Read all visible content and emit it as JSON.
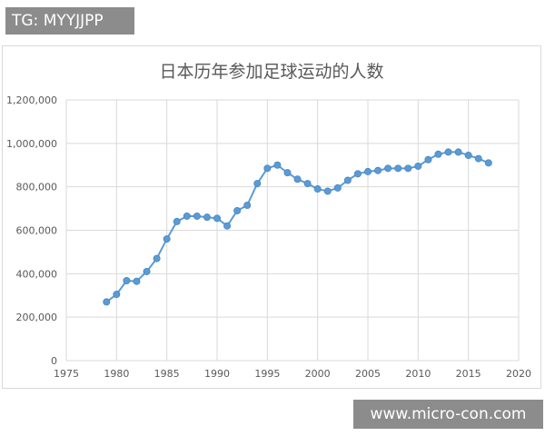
{
  "overlay": {
    "tg_text": "TG: MYYJJPP",
    "watermark_text": "www.micro-con.com"
  },
  "colors": {
    "line": "#5b9bd5",
    "marker": "#5b9bd5",
    "grid": "#d9d9d9",
    "axis_text": "#595959",
    "title": "#595959",
    "overlay_bg": "#8c8c8c"
  },
  "chart_data": {
    "type": "line",
    "title": "日本历年参加足球运动的人数",
    "xlabel": "",
    "ylabel": "",
    "xlim": [
      1975,
      2020
    ],
    "ylim": [
      0,
      1200000
    ],
    "x_ticks": [
      1975,
      1980,
      1985,
      1990,
      1995,
      2000,
      2005,
      2010,
      2015,
      2020
    ],
    "x_tick_labels": [
      "1975",
      "1980",
      "1985",
      "1990",
      "1995",
      "2000",
      "2005",
      "2010",
      "2015",
      "2020"
    ],
    "y_ticks": [
      0,
      200000,
      400000,
      600000,
      800000,
      1000000,
      1200000
    ],
    "y_tick_labels": [
      "0",
      "200,000",
      "400,000",
      "600,000",
      "800,000",
      "1,000,000",
      "1,200,000"
    ],
    "grid": true,
    "legend": "none",
    "series": [
      {
        "x": [
          1979,
          1980,
          1981,
          1982,
          1983,
          1984,
          1985,
          1986,
          1987,
          1988,
          1989,
          1990,
          1991,
          1992,
          1993,
          1994,
          1995,
          1996,
          1997,
          1998,
          1999,
          2000,
          2001,
          2002,
          2003,
          2004,
          2005,
          2006,
          2007,
          2008,
          2009,
          2010,
          2011,
          2012,
          2013,
          2014,
          2015,
          2016,
          2017
        ],
        "values": [
          270000,
          305000,
          368000,
          365000,
          410000,
          470000,
          560000,
          640000,
          665000,
          665000,
          660000,
          655000,
          620000,
          690000,
          715000,
          815000,
          885000,
          900000,
          865000,
          835000,
          815000,
          790000,
          780000,
          795000,
          830000,
          860000,
          870000,
          875000,
          885000,
          885000,
          885000,
          895000,
          925000,
          950000,
          960000,
          960000,
          945000,
          930000,
          910000
        ]
      }
    ]
  }
}
